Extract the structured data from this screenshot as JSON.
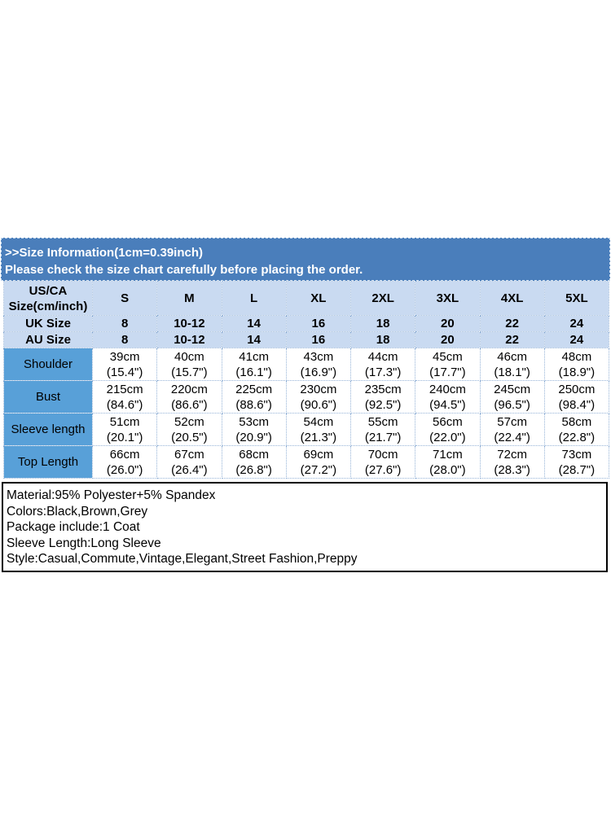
{
  "colors": {
    "band_blue": "#4a7ebb",
    "header_light_blue": "#c9daf1",
    "label_medium_blue": "#58a0d8",
    "grid_dotted_blue": "#95b3d7",
    "notes_border": "#000000"
  },
  "header": {
    "line1": ">>Size Information(1cm=0.39inch)",
    "line2": "Please check the size chart carefully before placing the order."
  },
  "size_table": {
    "header_row": {
      "label_line1": "US/CA",
      "label_line2": "Size(cm/inch)",
      "sizes": [
        "S",
        "M",
        "L",
        "XL",
        "2XL",
        "3XL",
        "4XL",
        "5XL"
      ]
    },
    "uk_row": {
      "label": "UK Size",
      "values": [
        "8",
        "10-12",
        "14",
        "16",
        "18",
        "20",
        "22",
        "24"
      ]
    },
    "au_row": {
      "label": "AU Size",
      "values": [
        "8",
        "10-12",
        "14",
        "16",
        "18",
        "20",
        "22",
        "24"
      ]
    },
    "measurements": [
      {
        "label": "Shoulder",
        "values": [
          [
            "39cm",
            "(15.4\")"
          ],
          [
            "40cm",
            "(15.7\")"
          ],
          [
            "41cm",
            "(16.1\")"
          ],
          [
            "43cm",
            "(16.9\")"
          ],
          [
            "44cm",
            "(17.3\")"
          ],
          [
            "45cm",
            "(17.7\")"
          ],
          [
            "46cm",
            "(18.1\")"
          ],
          [
            "48cm",
            "(18.9\")"
          ]
        ]
      },
      {
        "label": "Bust",
        "values": [
          [
            "215cm",
            "(84.6\")"
          ],
          [
            "220cm",
            "(86.6\")"
          ],
          [
            "225cm",
            "(88.6\")"
          ],
          [
            "230cm",
            "(90.6\")"
          ],
          [
            "235cm",
            "(92.5\")"
          ],
          [
            "240cm",
            "(94.5\")"
          ],
          [
            "245cm",
            "(96.5\")"
          ],
          [
            "250cm",
            "(98.4\")"
          ]
        ]
      },
      {
        "label": "Sleeve length",
        "values": [
          [
            "51cm",
            "(20.1\")"
          ],
          [
            "52cm",
            "(20.5\")"
          ],
          [
            "53cm",
            "(20.9\")"
          ],
          [
            "54cm",
            "(21.3\")"
          ],
          [
            "55cm",
            "(21.7\")"
          ],
          [
            "56cm",
            "(22.0\")"
          ],
          [
            "57cm",
            "(22.4\")"
          ],
          [
            "58cm",
            "(22.8\")"
          ]
        ]
      },
      {
        "label": "Top Length",
        "values": [
          [
            "66cm",
            "(26.0\")"
          ],
          [
            "67cm",
            "(26.4\")"
          ],
          [
            "68cm",
            "(26.8\")"
          ],
          [
            "69cm",
            "(27.2\")"
          ],
          [
            "70cm",
            "(27.6\")"
          ],
          [
            "71cm",
            "(28.0\")"
          ],
          [
            "72cm",
            "(28.3\")"
          ],
          [
            "73cm",
            "(28.7\")"
          ]
        ]
      }
    ]
  },
  "notes": {
    "lines": [
      "Material:95% Polyester+5% Spandex",
      "Colors:Black,Brown,Grey",
      "Package include:1 Coat",
      "Sleeve Length:Long Sleeve",
      "Style:Casual,Commute,Vintage,Elegant,Street Fashion,Preppy"
    ]
  }
}
